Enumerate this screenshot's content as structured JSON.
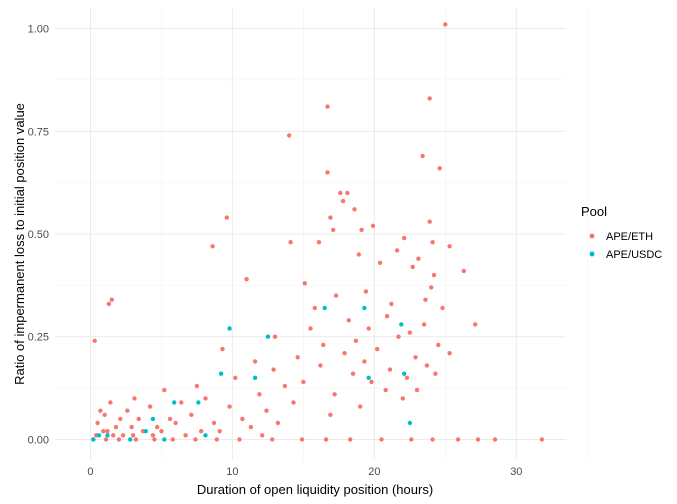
{
  "chart_data": {
    "type": "scatter",
    "title": "",
    "xlabel": "Duration of open liquidity position (hours)",
    "ylabel": "Ratio of impermanent loss to initial position value",
    "xlim": [
      -2.5,
      33.5
    ],
    "ylim": [
      -0.05,
      1.05
    ],
    "x_ticks": [
      0,
      10,
      20,
      30
    ],
    "x_tick_labels": [
      "0",
      "10",
      "20",
      "30"
    ],
    "y_ticks": [
      0,
      0.25,
      0.5,
      0.75,
      1
    ],
    "y_tick_labels": [
      "0.00",
      "0.25",
      "0.50",
      "0.75",
      "1.00"
    ],
    "grid": true,
    "legend": {
      "title": "Pool",
      "position": "right"
    },
    "series": [
      {
        "name": "APE/ETH",
        "color": "#F8766D",
        "points": [
          [
            25.0,
            1.01
          ],
          [
            23.9,
            0.83
          ],
          [
            16.7,
            0.81
          ],
          [
            14.0,
            0.74
          ],
          [
            23.4,
            0.69
          ],
          [
            24.6,
            0.66
          ],
          [
            16.7,
            0.65
          ],
          [
            17.6,
            0.6
          ],
          [
            18.1,
            0.6
          ],
          [
            17.8,
            0.58
          ],
          [
            18.6,
            0.56
          ],
          [
            16.9,
            0.54
          ],
          [
            9.6,
            0.54
          ],
          [
            23.9,
            0.53
          ],
          [
            17.1,
            0.51
          ],
          [
            19.1,
            0.51
          ],
          [
            19.9,
            0.52
          ],
          [
            22.1,
            0.49
          ],
          [
            24.1,
            0.48
          ],
          [
            16.1,
            0.48
          ],
          [
            14.1,
            0.48
          ],
          [
            8.6,
            0.47
          ],
          [
            21.6,
            0.46
          ],
          [
            25.3,
            0.47
          ],
          [
            18.9,
            0.45
          ],
          [
            23.1,
            0.44
          ],
          [
            20.4,
            0.43
          ],
          [
            22.7,
            0.42
          ],
          [
            26.3,
            0.41
          ],
          [
            24.2,
            0.4
          ],
          [
            11.0,
            0.39
          ],
          [
            15.1,
            0.38
          ],
          [
            19.4,
            0.36
          ],
          [
            24.0,
            0.37
          ],
          [
            17.3,
            0.35
          ],
          [
            23.6,
            0.34
          ],
          [
            21.2,
            0.33
          ],
          [
            1.3,
            0.33
          ],
          [
            1.5,
            0.34
          ],
          [
            15.8,
            0.32
          ],
          [
            24.8,
            0.32
          ],
          [
            20.9,
            0.3
          ],
          [
            18.2,
            0.29
          ],
          [
            27.1,
            0.28
          ],
          [
            23.5,
            0.28
          ],
          [
            19.6,
            0.27
          ],
          [
            15.5,
            0.27
          ],
          [
            22.5,
            0.26
          ],
          [
            21.7,
            0.25
          ],
          [
            13.0,
            0.25
          ],
          [
            18.7,
            0.24
          ],
          [
            0.3,
            0.24
          ],
          [
            16.4,
            0.23
          ],
          [
            24.5,
            0.23
          ],
          [
            9.3,
            0.22
          ],
          [
            20.2,
            0.22
          ],
          [
            25.3,
            0.21
          ],
          [
            17.9,
            0.21
          ],
          [
            22.9,
            0.2
          ],
          [
            14.6,
            0.2
          ],
          [
            19.3,
            0.19
          ],
          [
            11.6,
            0.19
          ],
          [
            23.7,
            0.18
          ],
          [
            16.2,
            0.18
          ],
          [
            21.1,
            0.17
          ],
          [
            12.9,
            0.17
          ],
          [
            18.5,
            0.16
          ],
          [
            24.3,
            0.16
          ],
          [
            10.2,
            0.15
          ],
          [
            22.3,
            0.15
          ],
          [
            15.0,
            0.14
          ],
          [
            19.8,
            0.14
          ],
          [
            7.5,
            0.13
          ],
          [
            13.7,
            0.13
          ],
          [
            20.8,
            0.12
          ],
          [
            23.0,
            0.12
          ],
          [
            5.2,
            0.12
          ],
          [
            11.9,
            0.11
          ],
          [
            17.2,
            0.11
          ],
          [
            22.0,
            0.1
          ],
          [
            8.1,
            0.1
          ],
          [
            3.1,
            0.1
          ],
          [
            14.3,
            0.09
          ],
          [
            1.4,
            0.09
          ],
          [
            6.4,
            0.09
          ],
          [
            19.0,
            0.08
          ],
          [
            9.8,
            0.08
          ],
          [
            4.2,
            0.08
          ],
          [
            12.4,
            0.07
          ],
          [
            0.7,
            0.07
          ],
          [
            2.6,
            0.07
          ],
          [
            7.1,
            0.06
          ],
          [
            16.9,
            0.06
          ],
          [
            1.0,
            0.06
          ],
          [
            5.6,
            0.05
          ],
          [
            10.7,
            0.05
          ],
          [
            3.4,
            0.05
          ],
          [
            2.1,
            0.05
          ],
          [
            8.7,
            0.04
          ],
          [
            0.5,
            0.04
          ],
          [
            13.2,
            0.04
          ],
          [
            6.0,
            0.04
          ],
          [
            1.8,
            0.03
          ],
          [
            4.7,
            0.03
          ],
          [
            11.3,
            0.03
          ],
          [
            2.9,
            0.03
          ],
          [
            0.9,
            0.02
          ],
          [
            7.8,
            0.02
          ],
          [
            5.0,
            0.02
          ],
          [
            1.2,
            0.02
          ],
          [
            3.7,
            0.02
          ],
          [
            9.1,
            0.02
          ],
          [
            0.4,
            0.01
          ],
          [
            2.3,
            0.01
          ],
          [
            6.7,
            0.01
          ],
          [
            1.6,
            0.01
          ],
          [
            4.4,
            0.01
          ],
          [
            3.0,
            0.01
          ],
          [
            12.1,
            0.01
          ],
          [
            0.2,
            0.0
          ],
          [
            1.1,
            0.0
          ],
          [
            2.0,
            0.0
          ],
          [
            3.2,
            0.0
          ],
          [
            4.5,
            0.0
          ],
          [
            5.8,
            0.0
          ],
          [
            7.4,
            0.0
          ],
          [
            8.9,
            0.0
          ],
          [
            10.5,
            0.0
          ],
          [
            12.8,
            0.0
          ],
          [
            14.9,
            0.0
          ],
          [
            16.6,
            0.0
          ],
          [
            18.3,
            0.0
          ],
          [
            20.5,
            0.0
          ],
          [
            22.6,
            0.0
          ],
          [
            24.1,
            0.0
          ],
          [
            25.9,
            0.0
          ],
          [
            27.3,
            0.0
          ],
          [
            28.5,
            0.0
          ],
          [
            31.8,
            0.0
          ]
        ]
      },
      {
        "name": "APE/USDC",
        "color": "#00BFC4",
        "points": [
          [
            16.5,
            0.32
          ],
          [
            19.3,
            0.32
          ],
          [
            9.8,
            0.27
          ],
          [
            12.5,
            0.25
          ],
          [
            21.9,
            0.28
          ],
          [
            9.2,
            0.16
          ],
          [
            11.6,
            0.15
          ],
          [
            19.6,
            0.15
          ],
          [
            22.1,
            0.16
          ],
          [
            7.6,
            0.09
          ],
          [
            5.9,
            0.09
          ],
          [
            4.4,
            0.05
          ],
          [
            22.5,
            0.04
          ],
          [
            3.9,
            0.02
          ],
          [
            0.6,
            0.01
          ],
          [
            1.2,
            0.01
          ],
          [
            2.8,
            0.0
          ],
          [
            0.2,
            0.0
          ],
          [
            5.2,
            0.0
          ],
          [
            8.1,
            0.01
          ]
        ]
      }
    ]
  }
}
